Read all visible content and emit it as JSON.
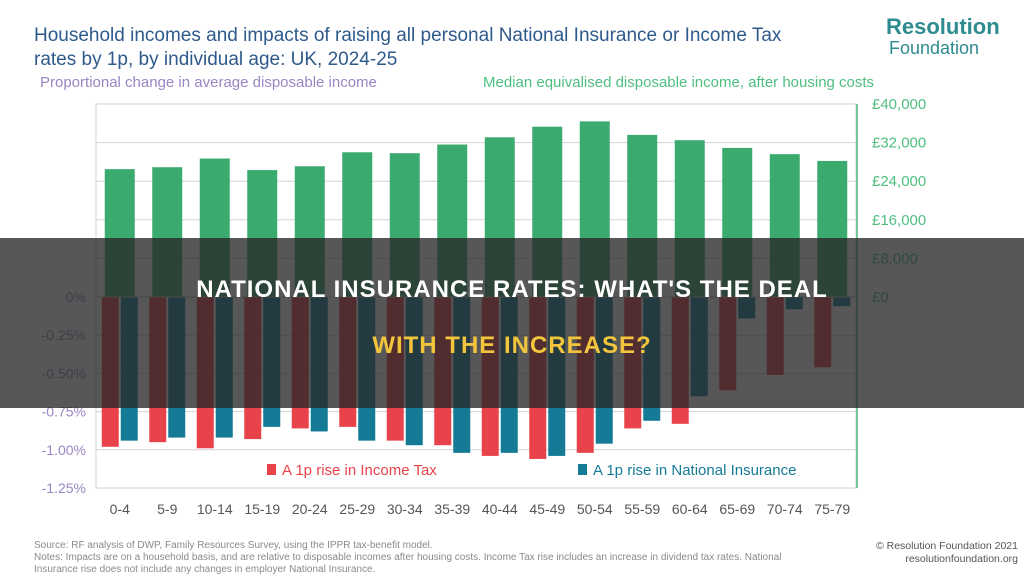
{
  "title_lines": [
    "Household incomes and impacts of raising all personal National Insurance or Income Tax",
    "rates by 1p, by individual age: UK, 2024-25"
  ],
  "logo": {
    "line1": "Resolution",
    "line2": "Foundation"
  },
  "footer": {
    "notes": [
      "Source: RF analysis of DWP, Family Resources Survey, using the IPPR tax-benefit model.",
      "Notes: Impacts are on a household basis, and are relative to disposable incomes after housing costs. Income Tax rise includes an increase in dividend tax rates. National",
      "Insurance rise does not include any changes in employer National Insurance."
    ],
    "copyright": "© Resolution Foundation 2021",
    "url": "resolutionfoundation.org"
  },
  "banner": {
    "line1": "NATIONAL INSURANCE RATES: WHAT'S THE DEAL",
    "line2": "WITH THE INCREASE?"
  },
  "colors": {
    "income": "#3aaa6e",
    "income_tax": "#e8434b",
    "national_insurance": "#157a96",
    "title": "#2e5a8c",
    "left_axis": "#9a86c4",
    "right_axis": "#4fbf80",
    "grid": "#d3d3d3"
  },
  "chart_data": {
    "type": "bar",
    "left_axis_label": "Proportional change in average disposable income",
    "right_axis_label": "Median equivalised disposable income, after housing costs",
    "categories": [
      "0-4",
      "5-9",
      "10-14",
      "15-19",
      "20-24",
      "25-29",
      "30-34",
      "35-39",
      "40-44",
      "45-49",
      "50-54",
      "55-59",
      "60-64",
      "65-69",
      "70-74",
      "75-79"
    ],
    "income": {
      "name": "Median equivalised disposable income, after housing costs",
      "values": [
        26500,
        26900,
        28700,
        26300,
        27100,
        30000,
        29800,
        31600,
        33100,
        35300,
        36400,
        33600,
        32500,
        30900,
        29600,
        28200
      ],
      "ylim": [
        0,
        40000
      ],
      "ticks": [
        {
          "value": 40000,
          "label": "£40,000"
        },
        {
          "value": 32000,
          "label": "£32,000"
        },
        {
          "value": 24000,
          "label": "£24,000"
        },
        {
          "value": 16000,
          "label": "£16,000"
        },
        {
          "value": 8000,
          "label": "£8,000"
        },
        {
          "value": 0,
          "label": "£0"
        }
      ]
    },
    "series": [
      {
        "name": "A 1p rise in Income Tax",
        "values": [
          -0.98,
          -0.95,
          -0.99,
          -0.93,
          -0.86,
          -0.85,
          -0.94,
          -0.97,
          -1.04,
          -1.06,
          -1.02,
          -0.86,
          -0.83,
          -0.61,
          -0.51,
          -0.46
        ]
      },
      {
        "name": "A 1p rise in National Insurance",
        "values": [
          -0.94,
          -0.92,
          -0.92,
          -0.85,
          -0.88,
          -0.94,
          -0.97,
          -1.02,
          -1.02,
          -1.04,
          -0.96,
          -0.81,
          -0.65,
          -0.14,
          -0.08,
          -0.06
        ]
      }
    ],
    "ylim": [
      -1.25,
      0
    ],
    "ticks": [
      {
        "value": 0,
        "label": "0%"
      },
      {
        "value": -0.25,
        "label": "-0.25%"
      },
      {
        "value": -0.5,
        "label": "-0.50%"
      },
      {
        "value": -0.75,
        "label": "-0.75%"
      },
      {
        "value": -1.0,
        "label": "-1.00%"
      },
      {
        "value": -1.25,
        "label": "-1.25%"
      }
    ],
    "legend_position": "bottom"
  }
}
